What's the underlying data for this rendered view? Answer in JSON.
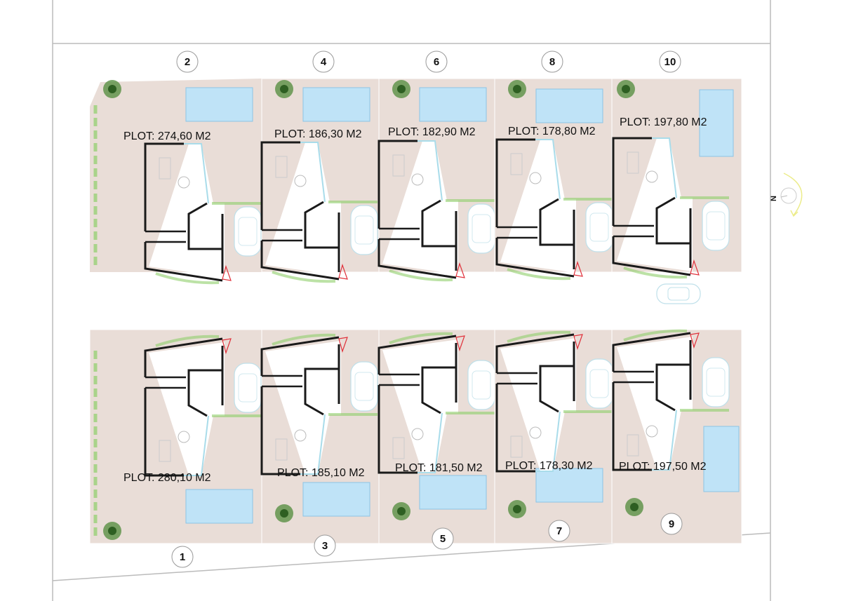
{
  "plan": {
    "north_label": "N",
    "colors": {
      "plot": "#e9ddd7",
      "pool": "#bfe3f7",
      "pool_edge": "#8cc4e6",
      "wall": "#1a1a1a",
      "hedge": "#8fcf6a",
      "entry_marker": "#e0303a",
      "north_arrow": "#ecec8a"
    },
    "top_row": [
      {
        "number": "2",
        "label": "PLOT: 274,60 M2"
      },
      {
        "number": "4",
        "label": "PLOT: 186,30 M2"
      },
      {
        "number": "6",
        "label": "PLOT: 182,90 M2"
      },
      {
        "number": "8",
        "label": "PLOT: 178,80 M2"
      },
      {
        "number": "10",
        "label": "PLOT: 197,80 M2"
      }
    ],
    "bottom_row": [
      {
        "number": "1",
        "label": "PLOT: 280,10 M2"
      },
      {
        "number": "3",
        "label": "PLOT: 185,10 M2"
      },
      {
        "number": "5",
        "label": "PLOT: 181,50 M2"
      },
      {
        "number": "7",
        "label": "PLOT: 178,30 M2"
      },
      {
        "number": "9",
        "label": "PLOT: 197,50 M2"
      }
    ]
  }
}
